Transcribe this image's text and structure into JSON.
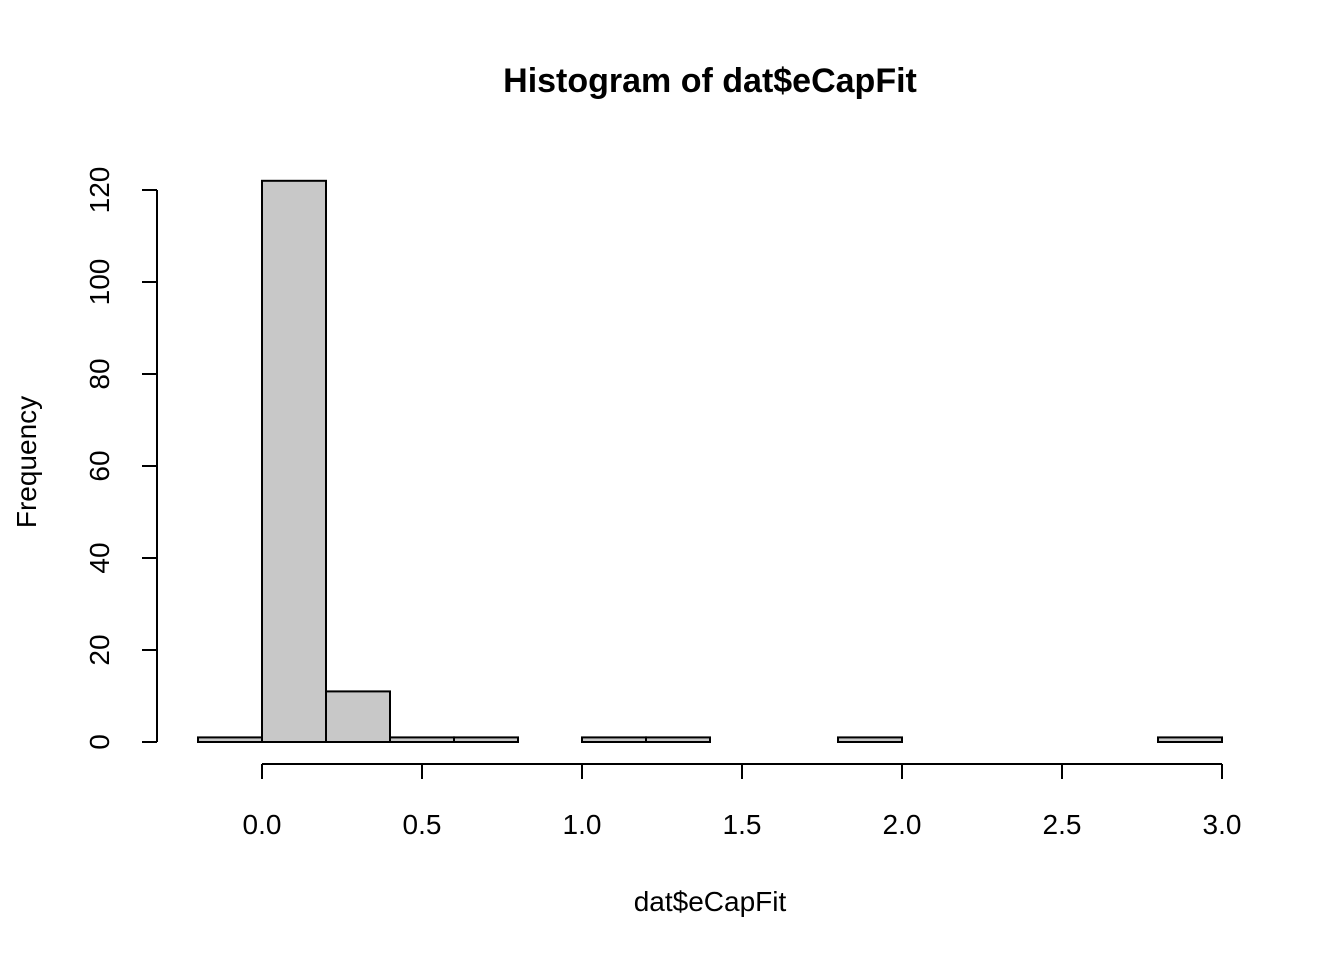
{
  "chart_data": {
    "type": "bar",
    "title": "Histogram of dat$eCapFit",
    "xlabel": "dat$eCapFit",
    "ylabel": "Frequency",
    "bins": [
      {
        "from": -0.2,
        "to": 0.0,
        "count": 1
      },
      {
        "from": 0.0,
        "to": 0.2,
        "count": 122
      },
      {
        "from": 0.2,
        "to": 0.4,
        "count": 11
      },
      {
        "from": 0.4,
        "to": 0.6,
        "count": 1
      },
      {
        "from": 0.6,
        "to": 0.8,
        "count": 1
      },
      {
        "from": 0.8,
        "to": 1.0,
        "count": 0
      },
      {
        "from": 1.0,
        "to": 1.2,
        "count": 1
      },
      {
        "from": 1.2,
        "to": 1.4,
        "count": 1
      },
      {
        "from": 1.4,
        "to": 1.6,
        "count": 0
      },
      {
        "from": 1.6,
        "to": 1.8,
        "count": 0
      },
      {
        "from": 1.8,
        "to": 2.0,
        "count": 1
      },
      {
        "from": 2.0,
        "to": 2.2,
        "count": 0
      },
      {
        "from": 2.2,
        "to": 2.4,
        "count": 0
      },
      {
        "from": 2.4,
        "to": 2.6,
        "count": 0
      },
      {
        "from": 2.6,
        "to": 2.8,
        "count": 0
      },
      {
        "from": 2.8,
        "to": 3.0,
        "count": 1
      }
    ],
    "x_ticks": [
      0.0,
      0.5,
      1.0,
      1.5,
      2.0,
      2.5,
      3.0
    ],
    "x_tick_labels": [
      "0.0",
      "0.5",
      "1.0",
      "1.5",
      "2.0",
      "2.5",
      "3.0"
    ],
    "y_ticks": [
      0,
      20,
      40,
      60,
      80,
      100,
      120
    ],
    "y_tick_labels": [
      "0",
      "20",
      "40",
      "60",
      "80",
      "100",
      "120"
    ],
    "xlim": [
      -0.2,
      3.0
    ],
    "ylim": [
      0,
      122
    ],
    "bar_color": "#c8c8c8",
    "border_color": "#000000",
    "grid": false
  }
}
